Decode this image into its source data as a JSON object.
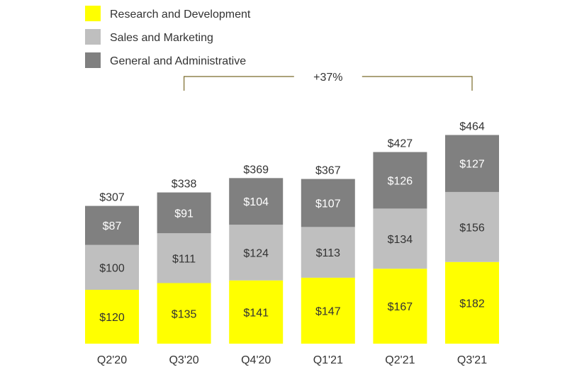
{
  "chart_data": {
    "type": "bar",
    "stacked": true,
    "categories": [
      "Q2'20",
      "Q3'20",
      "Q4'20",
      "Q1'21",
      "Q2'21",
      "Q3'21"
    ],
    "series": [
      {
        "name": "Research and Development",
        "color": "#ffff00",
        "label_color": "#333333",
        "values": [
          120,
          135,
          141,
          147,
          167,
          182
        ],
        "labels": [
          "$120",
          "$135",
          "$141",
          "$147",
          "$167",
          "$182"
        ]
      },
      {
        "name": "Sales and Marketing",
        "color": "#bfbfbf",
        "label_color": "#333333",
        "values": [
          100,
          111,
          124,
          113,
          134,
          156
        ],
        "labels": [
          "$100",
          "$111",
          "$124",
          "$113",
          "$134",
          "$156"
        ]
      },
      {
        "name": "General and Administrative",
        "color": "#808080",
        "label_color": "#ffffff",
        "values": [
          87,
          91,
          104,
          107,
          126,
          127
        ],
        "labels": [
          "$87",
          "$91",
          "$104",
          "$107",
          "$126",
          "$127"
        ]
      }
    ],
    "totals": [
      307,
      338,
      369,
      367,
      427,
      464
    ],
    "total_labels": [
      "$307",
      "$338",
      "$369",
      "$367",
      "$427",
      "$464"
    ],
    "annotation": {
      "text": "+37%",
      "from": "Q3'20",
      "to": "Q3'21",
      "color": "#7a6a2a"
    },
    "ylim": [
      0,
      500
    ],
    "grid": false,
    "legend_position": "top-left",
    "title": "",
    "xlabel": "",
    "ylabel": ""
  }
}
